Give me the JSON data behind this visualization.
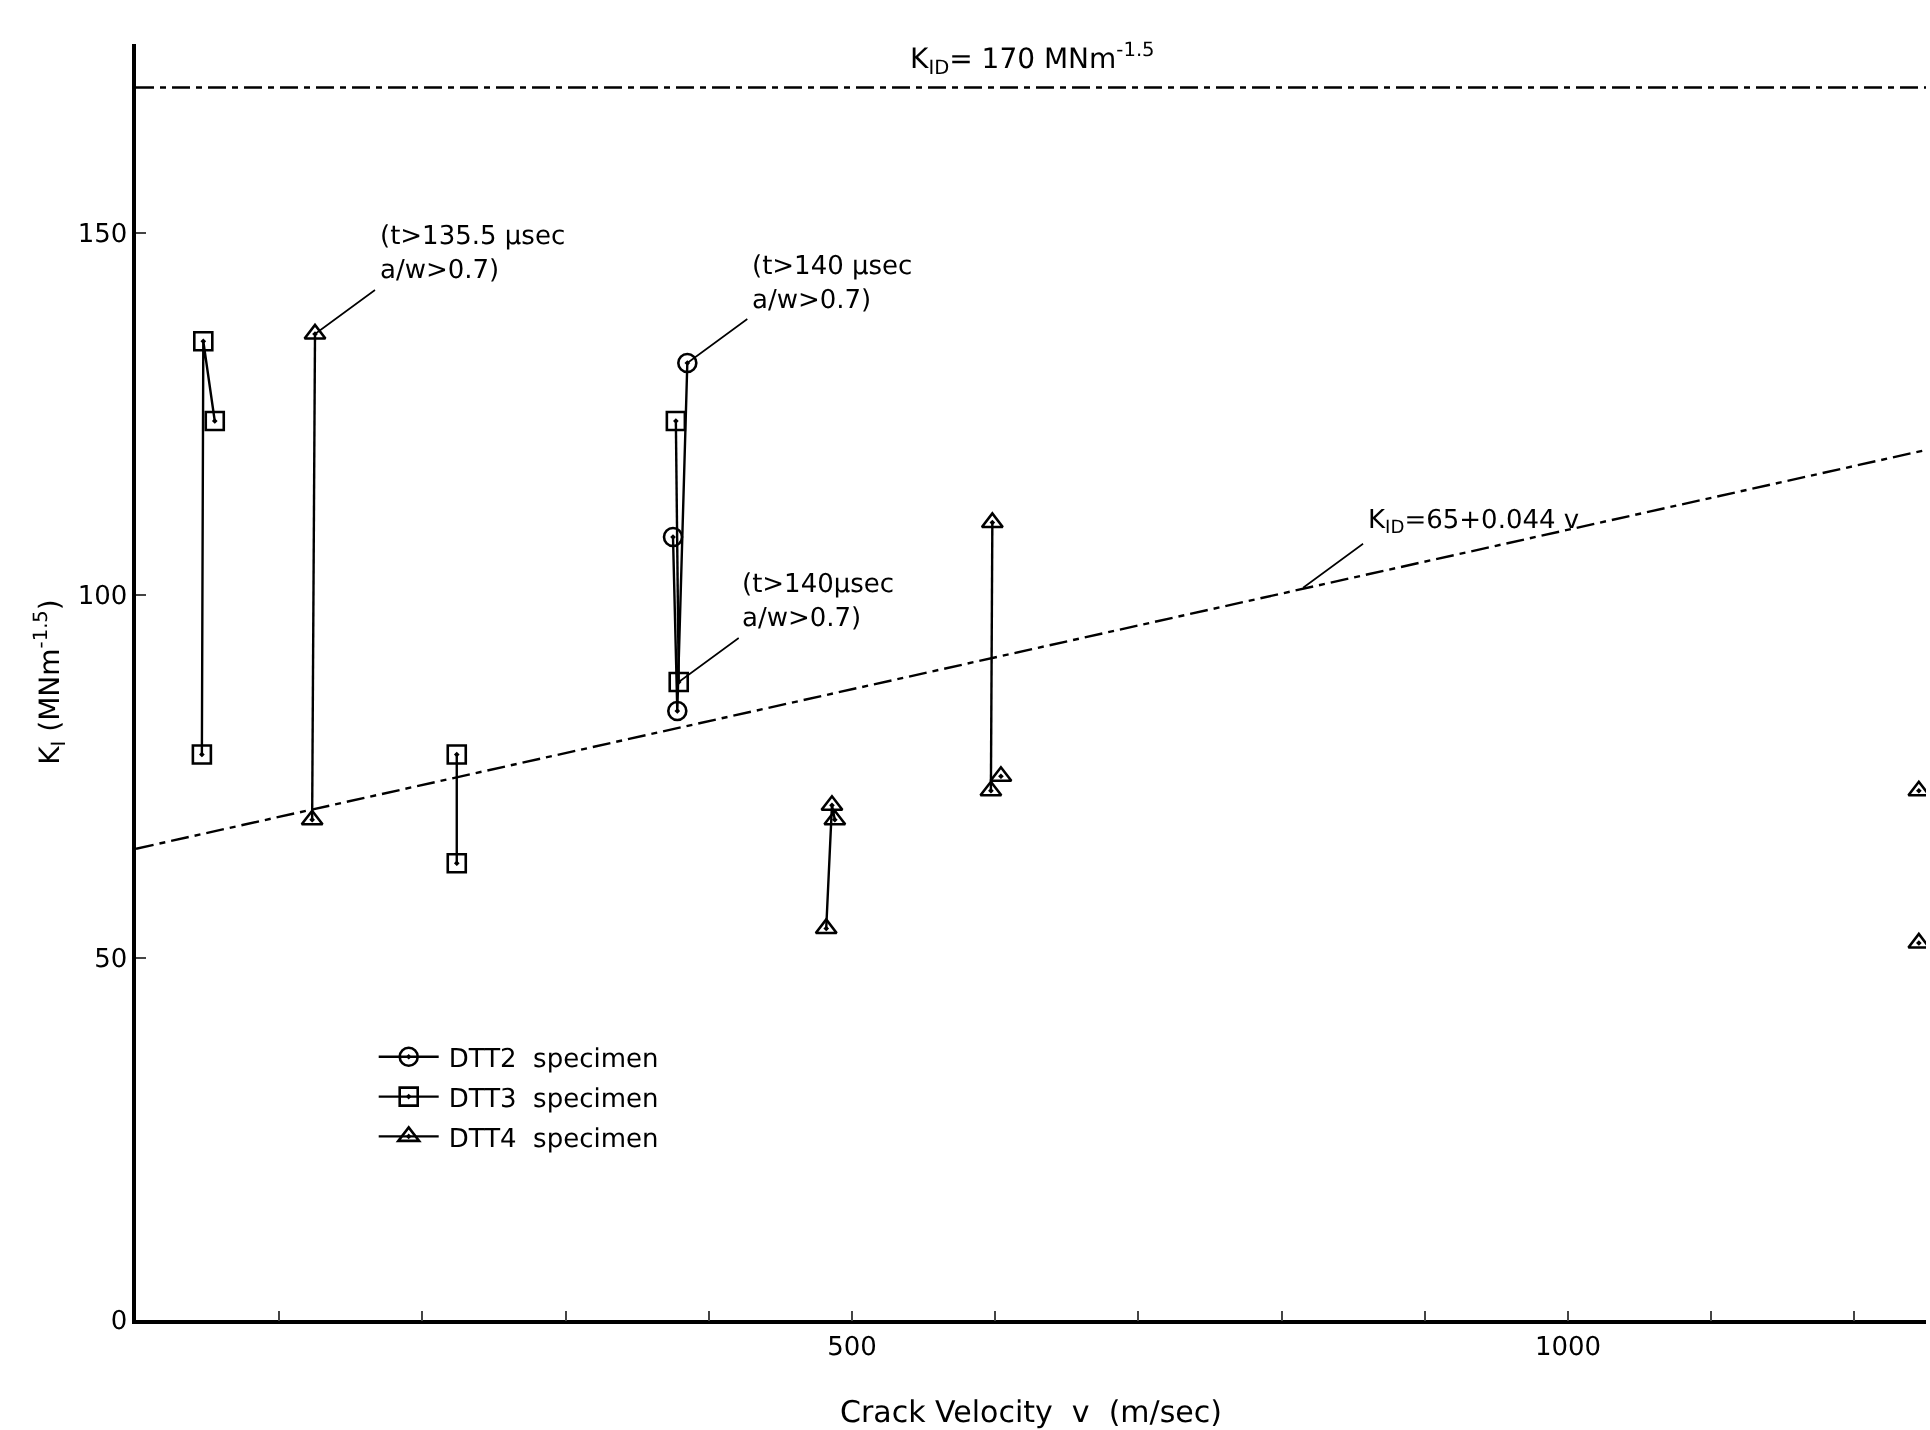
{
  "chart_data": {
    "type": "line",
    "xlabel": "Crack Velocity  v  (m/sec)",
    "ylabel": "K$_{I}$ (MNm$^{-1.5}$)",
    "xlim": [
      0,
      1250
    ],
    "xticks": [
      {
        "value": 100,
        "label": null
      },
      {
        "value": 200,
        "label": null
      },
      {
        "value": 300,
        "label": null
      },
      {
        "value": 400,
        "label": null
      },
      500,
      {
        "value": 600,
        "label": null
      },
      {
        "value": 700,
        "label": null
      },
      {
        "value": 800,
        "label": null
      },
      {
        "value": 900,
        "label": null
      },
      1000,
      {
        "value": 1100,
        "label": null
      },
      {
        "value": 1200,
        "label": null
      }
    ],
    "ylim": [
      0,
      176
    ],
    "yticks": [
      0,
      50,
      100,
      150
    ],
    "grid": false,
    "legend": "bottom left",
    "series": [
      {
        "name": "DTT2  specimen",
        "marker": "circle",
        "color": "#000000",
        "x": [
          375,
          378,
          385
        ],
        "values": [
          108,
          84,
          132
        ]
      },
      {
        "name": "DTT3  specimen",
        "marker": "square",
        "color": "#000000",
        "x": [
          46,
          47,
          55,
          null,
          224,
          224,
          null,
          377,
          379
        ],
        "values": [
          78,
          135,
          124,
          null,
          63,
          78,
          null,
          124,
          88
        ]
      },
      {
        "name": "DTT4  specimen",
        "marker": "triangle",
        "color": "#000000",
        "x": [
          123,
          125,
          null,
          482,
          486,
          488,
          null,
          597,
          598,
          null,
          604,
          null,
          1245,
          null,
          1245
        ],
        "values": [
          69,
          136,
          null,
          54,
          71,
          69,
          null,
          73,
          110,
          null,
          75,
          null,
          73,
          null,
          52
        ]
      },
      {
        "line_style": "dashed",
        "marker": "none",
        "color": "#000000",
        "x": [
          0,
          1250
        ],
        "values": [
          65,
          120
        ]
      }
    ],
    "ref_lines": [
      {
        "axis": "y",
        "value": 170,
        "label": "K$_{ID}$= 170 MNm$^{-1.5}$",
        "color": "#000000",
        "line_style": "dashed"
      }
    ],
    "annotations": [
      {
        "text": "K$_{ID}$=65+0.044 v",
        "x": 815,
        "y": 101
      },
      {
        "text": "(t>135.5 μsec\na/w>0.7)",
        "x": 125,
        "y": 136
      },
      {
        "text": "(t>140 μsec\na/w>0.7)",
        "x": 385,
        "y": 132
      },
      {
        "text": "(t>140μsec\na/w>0.7)",
        "x": 379,
        "y": 88
      }
    ]
  }
}
